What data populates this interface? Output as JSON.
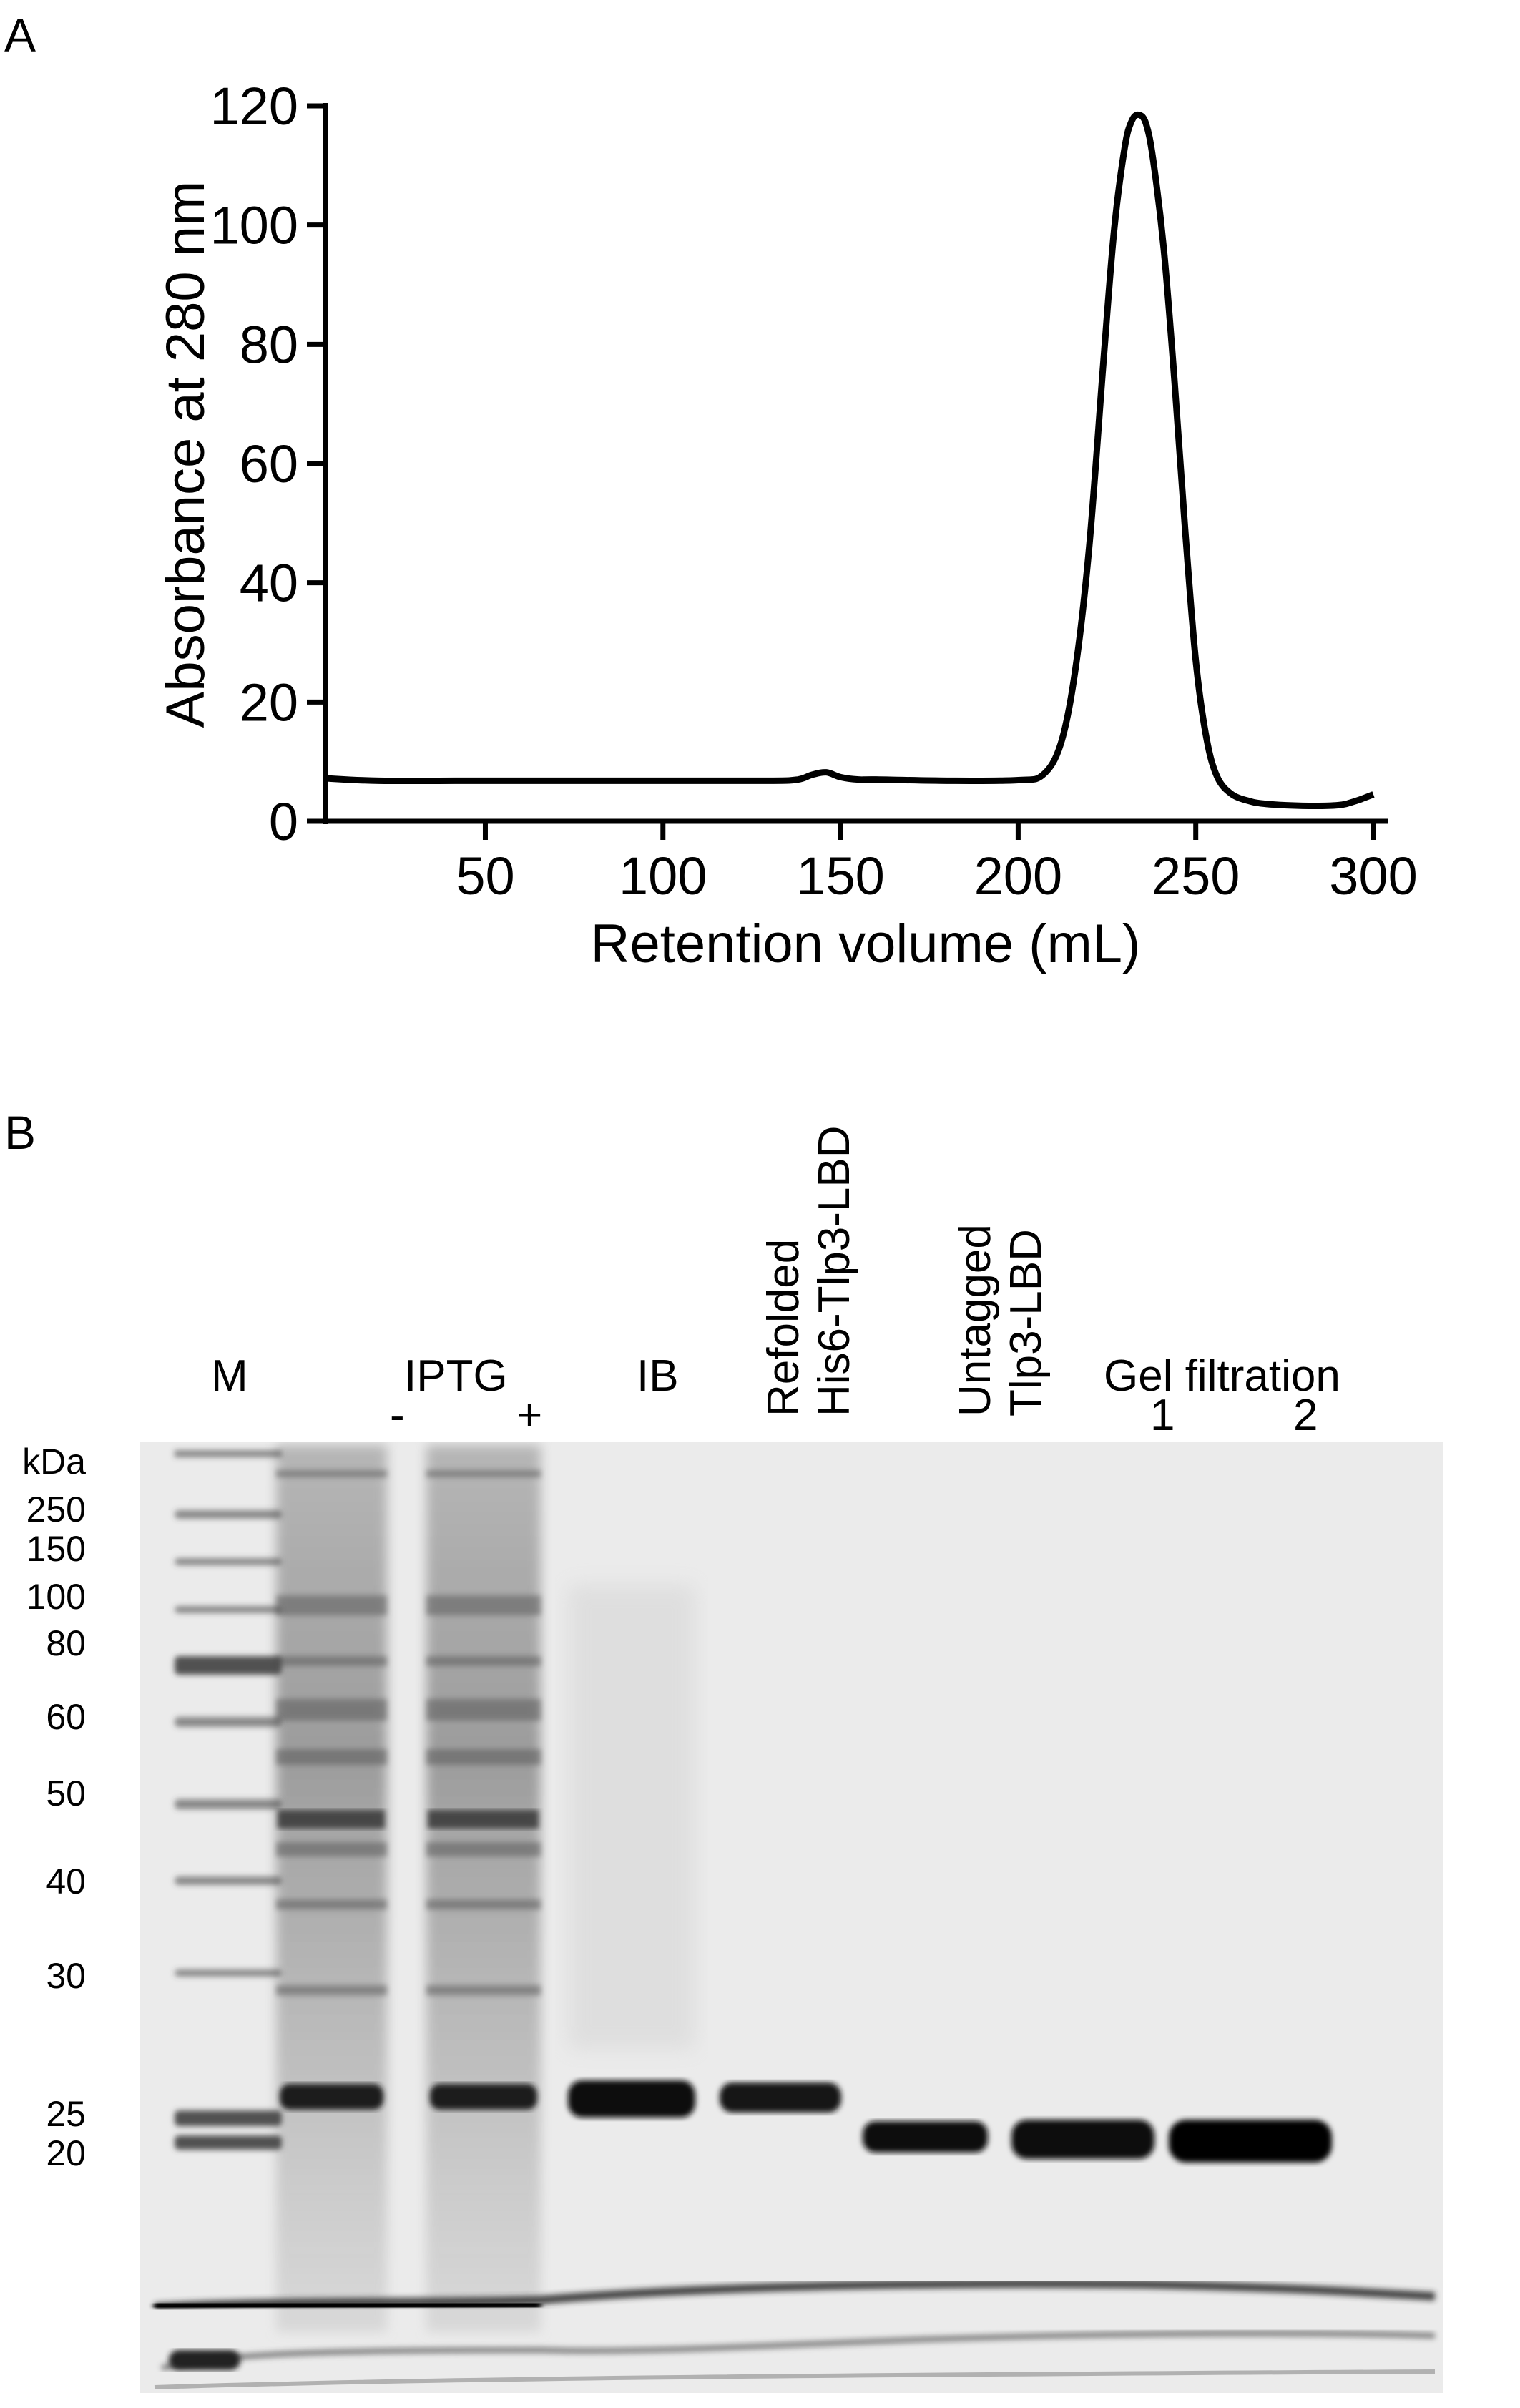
{
  "panel_a": {
    "label": "A",
    "chart_data": {
      "type": "line",
      "title": "",
      "xlabel": "Retention volume (mL)",
      "ylabel": "Absorbance at 280 nm",
      "xlim": [
        5,
        300
      ],
      "ylim": [
        0,
        120
      ],
      "xticks": [
        50,
        100,
        150,
        200,
        250,
        300
      ],
      "yticks": [
        0,
        20,
        40,
        60,
        80,
        100,
        120
      ],
      "grid": false,
      "series": [
        {
          "color": "#000000",
          "x": [
            5,
            20,
            50,
            100,
            130,
            138,
            142,
            146,
            150,
            155,
            160,
            180,
            200,
            207,
            212,
            216,
            220,
            224,
            227,
            230,
            232,
            234,
            236,
            238,
            241,
            244,
            247,
            250,
            253,
            256,
            260,
            265,
            270,
            280,
            290,
            295,
            300
          ],
          "y": [
            7.2,
            6.8,
            6.8,
            6.8,
            6.8,
            7.0,
            7.8,
            8.2,
            7.4,
            7.0,
            7.0,
            6.8,
            6.9,
            7.8,
            13,
            25,
            46,
            77,
            99,
            113,
            117.5,
            118.5,
            117,
            111,
            96,
            74,
            49,
            27,
            14,
            7.5,
            4.6,
            3.4,
            2.9,
            2.6,
            2.7,
            3.4,
            4.5
          ]
        }
      ]
    }
  },
  "panel_b": {
    "label": "B",
    "lanes": {
      "marker": "M",
      "iptg": "IPTG",
      "iptg_minus": "-",
      "iptg_plus": "+",
      "ib": "IB",
      "refolded_line1": "Refolded",
      "refolded_line2": "His6-Tlp3-LBD",
      "untagged_line1": "Untagged",
      "untagged_line2": "Tlp3-LBD",
      "gel_filtration": "Gel filtration",
      "gf1": "1",
      "gf2": "2"
    },
    "mw_unit": "kDa",
    "mw_markers": [
      "250",
      "150",
      "100",
      "80",
      "60",
      "50",
      "40",
      "30",
      "25",
      "20"
    ]
  }
}
